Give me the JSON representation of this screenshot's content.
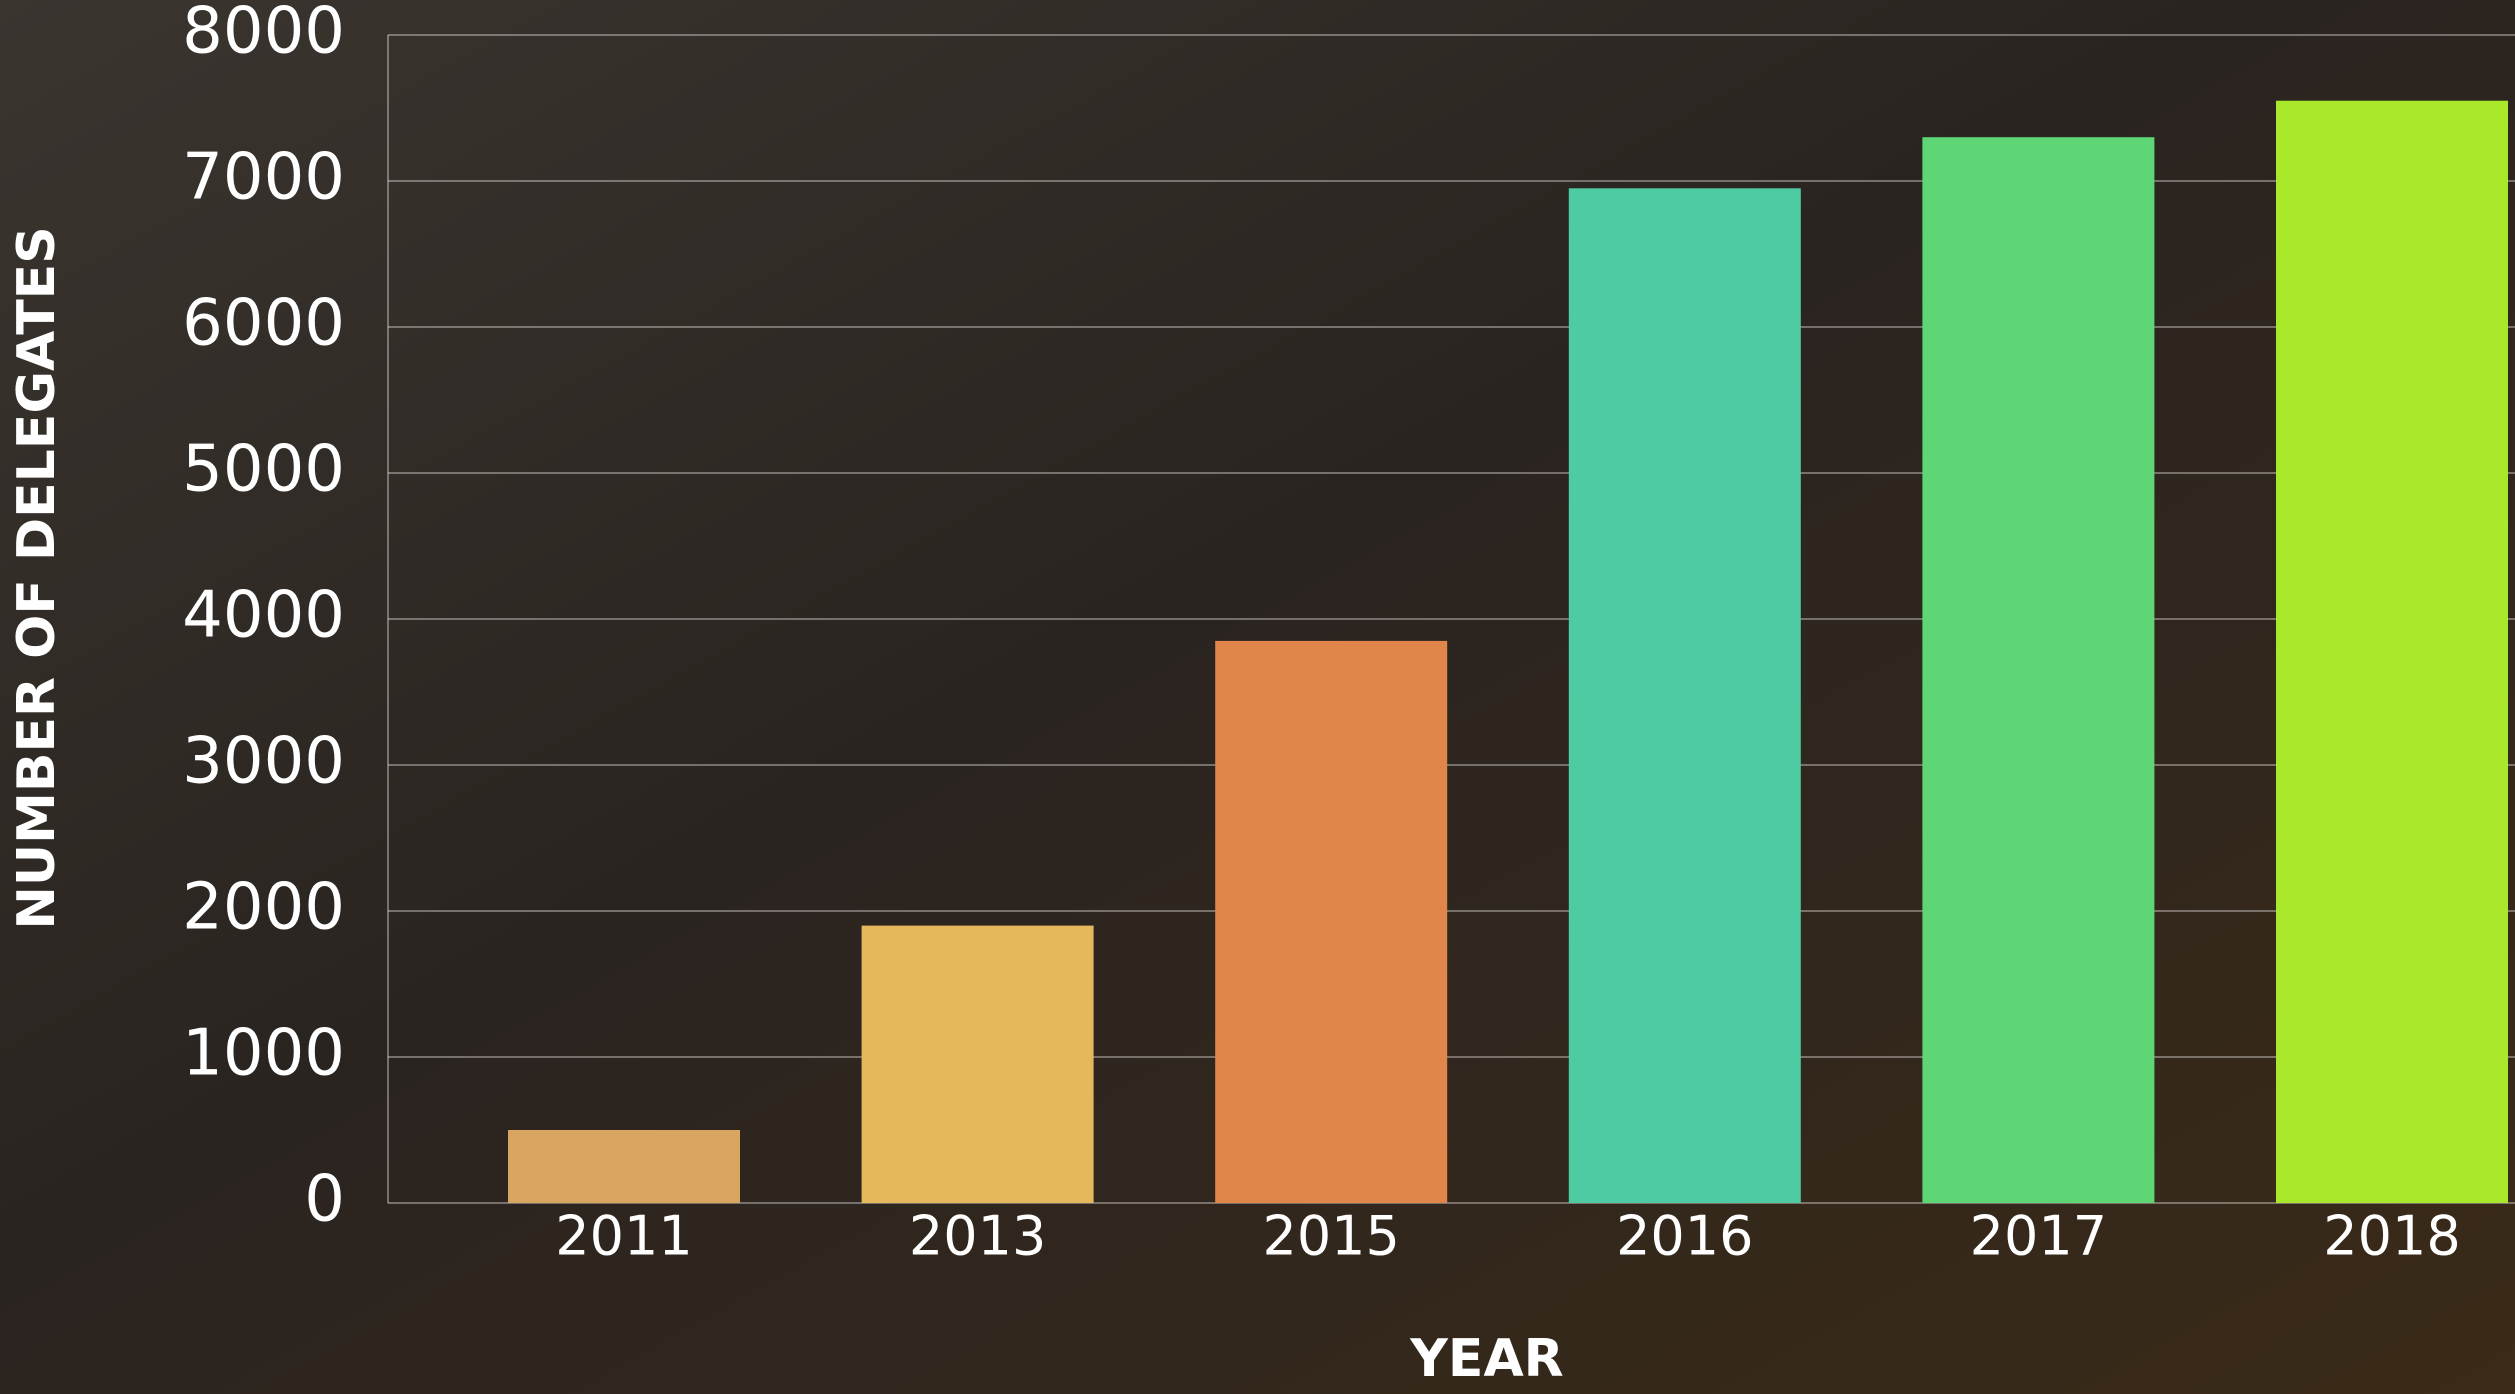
{
  "chart_data": {
    "type": "bar",
    "categories": [
      "2011",
      "2013",
      "2015",
      "2016",
      "2017",
      "2018"
    ],
    "values": [
      500,
      1900,
      3850,
      6950,
      7300,
      7550
    ],
    "colors": [
      "#d9a662",
      "#e6b85e",
      "#e0864b",
      "#4fcba3",
      "#5fd676",
      "#a9e82b"
    ],
    "x_label": "YEAR",
    "y_label": "NUMBER OF DELEGATES",
    "ylim": [
      0,
      8000
    ],
    "yticks": [
      0,
      1000,
      2000,
      3000,
      4000,
      5000,
      6000,
      7000,
      8000
    ],
    "grid": true
  }
}
